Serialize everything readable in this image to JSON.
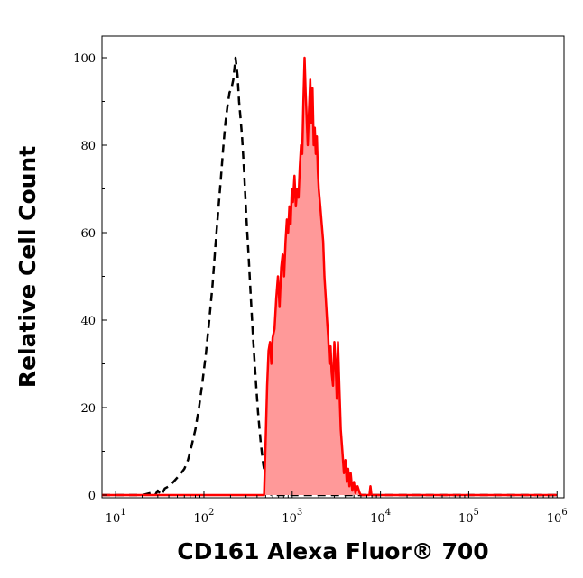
{
  "chart_data": {
    "type": "area",
    "xlabel": "CD161 Alexa Fluor® 700",
    "ylabel": "Relative Cell Count",
    "x_scale": "log",
    "xlim": [
      7,
      1200000
    ],
    "ylim": [
      -1,
      100
    ],
    "x_ticks": [
      {
        "value": 10,
        "base": "10",
        "exp": "1"
      },
      {
        "value": 100,
        "base": "10",
        "exp": "2"
      },
      {
        "value": 1000,
        "base": "10",
        "exp": "3"
      },
      {
        "value": 10000,
        "base": "10",
        "exp": "4"
      },
      {
        "value": 100000,
        "base": "10",
        "exp": "5"
      },
      {
        "value": 1000000,
        "base": "10",
        "exp": "6"
      }
    ],
    "y_ticks": [
      "0",
      "20",
      "40",
      "60",
      "80",
      "100"
    ],
    "series": [
      {
        "style": "dashed",
        "color": "#000000",
        "points": [
          [
            7,
            0
          ],
          [
            20,
            0
          ],
          [
            25,
            0.5
          ],
          [
            28,
            0
          ],
          [
            30,
            1
          ],
          [
            33,
            0
          ],
          [
            36,
            1.5
          ],
          [
            40,
            2
          ],
          [
            45,
            3
          ],
          [
            50,
            4
          ],
          [
            55,
            5
          ],
          [
            60,
            6
          ],
          [
            66,
            8
          ],
          [
            72,
            11
          ],
          [
            80,
            15
          ],
          [
            88,
            20
          ],
          [
            95,
            25
          ],
          [
            105,
            32
          ],
          [
            115,
            40
          ],
          [
            125,
            48
          ],
          [
            135,
            57
          ],
          [
            145,
            65
          ],
          [
            155,
            72
          ],
          [
            165,
            79
          ],
          [
            175,
            85
          ],
          [
            185,
            89
          ],
          [
            195,
            92
          ],
          [
            205,
            93
          ],
          [
            215,
            95
          ],
          [
            228,
            100
          ],
          [
            240,
            96
          ],
          [
            250,
            90
          ],
          [
            260,
            86
          ],
          [
            270,
            82
          ],
          [
            285,
            74
          ],
          [
            300,
            65
          ],
          [
            320,
            55
          ],
          [
            340,
            45
          ],
          [
            360,
            36
          ],
          [
            385,
            27
          ],
          [
            410,
            19
          ],
          [
            440,
            12
          ],
          [
            470,
            7
          ],
          [
            500,
            4
          ],
          [
            540,
            2
          ],
          [
            580,
            0
          ],
          [
            1000000,
            0
          ]
        ]
      },
      {
        "style": "filled",
        "color": "#ff0000",
        "fill": "#ff9999",
        "points": [
          [
            7,
            0
          ],
          [
            480,
            0
          ],
          [
            500,
            12
          ],
          [
            520,
            25
          ],
          [
            540,
            33
          ],
          [
            560,
            35
          ],
          [
            580,
            30
          ],
          [
            600,
            36
          ],
          [
            630,
            38
          ],
          [
            660,
            45
          ],
          [
            690,
            50
          ],
          [
            720,
            43
          ],
          [
            750,
            52
          ],
          [
            780,
            55
          ],
          [
            810,
            50
          ],
          [
            840,
            58
          ],
          [
            870,
            63
          ],
          [
            900,
            60
          ],
          [
            930,
            66
          ],
          [
            960,
            62
          ],
          [
            990,
            70
          ],
          [
            1020,
            67
          ],
          [
            1060,
            73
          ],
          [
            1100,
            66
          ],
          [
            1140,
            70
          ],
          [
            1180,
            68
          ],
          [
            1220,
            75
          ],
          [
            1260,
            80
          ],
          [
            1300,
            78
          ],
          [
            1340,
            90
          ],
          [
            1380,
            100
          ],
          [
            1420,
            92
          ],
          [
            1460,
            86
          ],
          [
            1500,
            80
          ],
          [
            1550,
            88
          ],
          [
            1600,
            95
          ],
          [
            1650,
            85
          ],
          [
            1700,
            93
          ],
          [
            1750,
            80
          ],
          [
            1800,
            84
          ],
          [
            1850,
            78
          ],
          [
            1900,
            82
          ],
          [
            1950,
            74
          ],
          [
            2000,
            70
          ],
          [
            2080,
            66
          ],
          [
            2160,
            62
          ],
          [
            2240,
            58
          ],
          [
            2320,
            50
          ],
          [
            2400,
            45
          ],
          [
            2480,
            40
          ],
          [
            2560,
            36
          ],
          [
            2640,
            30
          ],
          [
            2720,
            34
          ],
          [
            2800,
            28
          ],
          [
            2900,
            25
          ],
          [
            3000,
            35
          ],
          [
            3100,
            30
          ],
          [
            3200,
            22
          ],
          [
            3300,
            35
          ],
          [
            3420,
            25
          ],
          [
            3550,
            15
          ],
          [
            3700,
            10
          ],
          [
            3850,
            5
          ],
          [
            4000,
            8
          ],
          [
            4150,
            3
          ],
          [
            4300,
            6
          ],
          [
            4450,
            2
          ],
          [
            4600,
            5
          ],
          [
            4800,
            1
          ],
          [
            5000,
            3
          ],
          [
            5200,
            0.5
          ],
          [
            5500,
            2
          ],
          [
            5800,
            0.5
          ],
          [
            6000,
            0
          ],
          [
            7500,
            0
          ],
          [
            7700,
            2
          ],
          [
            7900,
            0
          ],
          [
            1000000,
            0
          ]
        ]
      }
    ]
  }
}
